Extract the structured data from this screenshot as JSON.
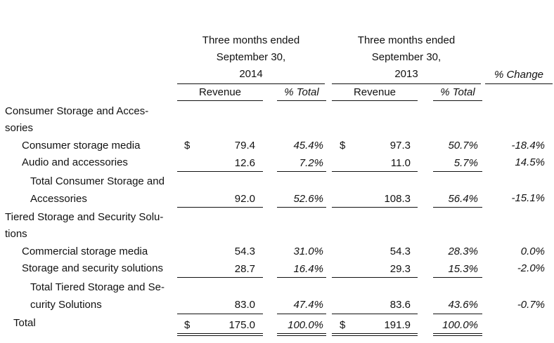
{
  "header": {
    "period_2014": [
      "Three months ended",
      "September 30,",
      "2014"
    ],
    "period_2013": [
      "Three months ended",
      "September 30,",
      "2013"
    ],
    "change_label": "% Change",
    "revenue_label": "Revenue",
    "total_pct_label": "% Total"
  },
  "rows": [
    {
      "label": [
        "Consumer Storage and Acces-",
        "sories"
      ]
    },
    {
      "label": [
        "Consumer storage media"
      ],
      "d1": "$",
      "rev14": "79.4",
      "pct14": "45.4%",
      "d2": "$",
      "rev13": "97.3",
      "pct13": "50.7%",
      "chg": "-18.4%"
    },
    {
      "label": [
        "Audio and accessories"
      ],
      "rev14": "12.6",
      "pct14": "7.2%",
      "rev13": "11.0",
      "pct13": "5.7%",
      "chg": "14.5%"
    },
    {
      "label": [
        "Total Consumer Storage and",
        "Accessories"
      ],
      "rev14": "92.0",
      "pct14": "52.6%",
      "rev13": "108.3",
      "pct13": "56.4%",
      "chg": "-15.1%"
    },
    {
      "label": [
        "Tiered Storage and Security Solu-",
        "tions"
      ]
    },
    {
      "label": [
        "Commercial storage media"
      ],
      "rev14": "54.3",
      "pct14": "31.0%",
      "rev13": "54.3",
      "pct13": "28.3%",
      "chg": "0.0%"
    },
    {
      "label": [
        "Storage and security solutions"
      ],
      "rev14": "28.7",
      "pct14": "16.4%",
      "rev13": "29.3",
      "pct13": "15.3%",
      "chg": "-2.0%"
    },
    {
      "label": [
        "Total Tiered Storage and Se-",
        "curity Solutions"
      ],
      "rev14": "83.0",
      "pct14": "47.4%",
      "rev13": "83.6",
      "pct13": "43.6%",
      "chg": "-0.7%"
    },
    {
      "label": [
        "Total"
      ],
      "d1": "$",
      "rev14": "175.0",
      "pct14": "100.0%",
      "d2": "$",
      "rev13": "191.9",
      "pct13": "100.0%"
    }
  ]
}
